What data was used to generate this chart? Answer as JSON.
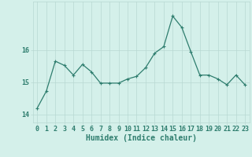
{
  "x": [
    0,
    1,
    2,
    3,
    4,
    5,
    6,
    7,
    8,
    9,
    10,
    11,
    12,
    13,
    14,
    15,
    16,
    17,
    18,
    19,
    20,
    21,
    22,
    23
  ],
  "y": [
    14.2,
    14.72,
    15.65,
    15.52,
    15.22,
    15.55,
    15.32,
    14.97,
    14.97,
    14.97,
    15.1,
    15.18,
    15.45,
    15.9,
    16.1,
    17.05,
    16.7,
    15.95,
    15.22,
    15.22,
    15.1,
    14.92,
    15.22,
    14.92
  ],
  "line_color": "#2e7d6e",
  "marker": "+",
  "marker_size": 3,
  "marker_linewidth": 0.8,
  "linewidth": 0.9,
  "bg_color": "#d4f0ea",
  "grid_color": "#b8d8d2",
  "xlabel": "Humidex (Indice chaleur)",
  "xlim": [
    -0.5,
    23.5
  ],
  "ylim": [
    13.75,
    17.5
  ],
  "yticks": [
    14,
    15,
    16
  ],
  "xticks": [
    0,
    1,
    2,
    3,
    4,
    5,
    6,
    7,
    8,
    9,
    10,
    11,
    12,
    13,
    14,
    15,
    16,
    17,
    18,
    19,
    20,
    21,
    22,
    23
  ],
  "xlabel_fontsize": 7,
  "tick_fontsize": 6,
  "label_color": "#2e7d6e"
}
